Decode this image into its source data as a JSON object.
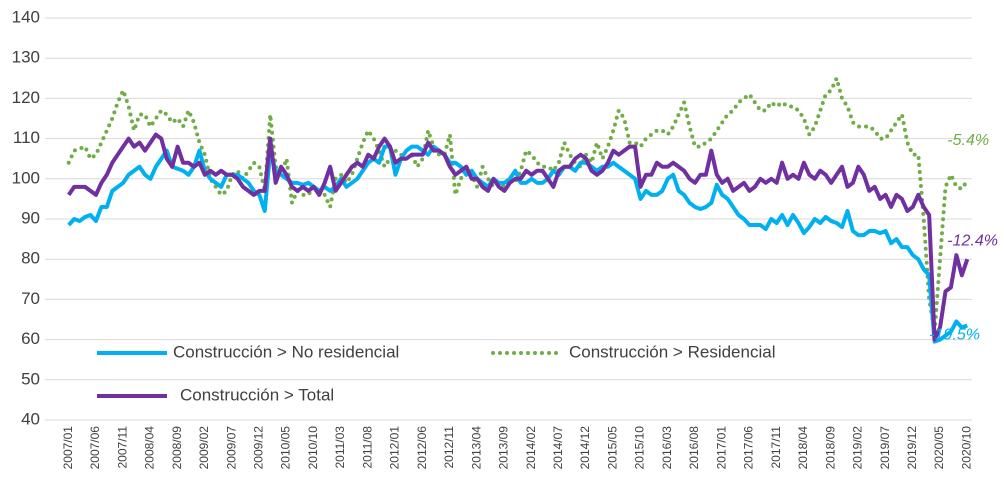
{
  "chart_data": {
    "type": "line",
    "categories": [
      "2007/01",
      null,
      null,
      null,
      null,
      "2007/06",
      null,
      null,
      null,
      null,
      "2007/11",
      null,
      null,
      null,
      null,
      "2008/04",
      null,
      null,
      null,
      null,
      "2008/09",
      null,
      null,
      null,
      null,
      "2009/02",
      null,
      null,
      null,
      null,
      "2009/07",
      null,
      null,
      null,
      null,
      "2009/12",
      null,
      null,
      null,
      null,
      "2010/05",
      null,
      null,
      null,
      null,
      "2010/10",
      null,
      null,
      null,
      null,
      "2011/03",
      null,
      null,
      null,
      null,
      "2011/08",
      null,
      null,
      null,
      null,
      "2012/01",
      null,
      null,
      null,
      null,
      "2012/06",
      null,
      null,
      null,
      null,
      "2012/11",
      null,
      null,
      null,
      null,
      "2013/04",
      null,
      null,
      null,
      null,
      "2013/09",
      null,
      null,
      null,
      null,
      "2014/02",
      null,
      null,
      null,
      null,
      "2014/07",
      null,
      null,
      null,
      null,
      "2014/12",
      null,
      null,
      null,
      null,
      "2015/05",
      null,
      null,
      null,
      null,
      "2015/10",
      null,
      null,
      null,
      null,
      "2016/03",
      null,
      null,
      null,
      null,
      "2016/08",
      null,
      null,
      null,
      null,
      "2017/01",
      null,
      null,
      null,
      null,
      "2017/06",
      null,
      null,
      null,
      null,
      "2017/11",
      null,
      null,
      null,
      null,
      "2018/04",
      null,
      null,
      null,
      null,
      "2018/09",
      null,
      null,
      null,
      null,
      "2019/02",
      null,
      null,
      null,
      null,
      "2019/07",
      null,
      null,
      null,
      null,
      "2019/12",
      null,
      null,
      null,
      null,
      "2020/05",
      null,
      null,
      null,
      null,
      "2020/10"
    ],
    "series": [
      {
        "name": "Construcción > No residencial",
        "color": "#00b0f0",
        "style": "solid",
        "annotation": "-19.5%",
        "values": [
          88.5,
          90,
          89.5,
          90.5,
          91,
          89.5,
          93,
          93,
          97,
          98,
          99,
          101,
          102,
          103,
          101,
          100,
          103,
          105,
          107,
          103,
          102.5,
          102,
          101,
          103,
          107,
          102,
          100,
          99,
          98,
          101,
          101,
          101,
          100,
          99,
          97,
          96,
          92,
          107,
          102,
          101,
          100,
          99,
          99,
          98.5,
          99,
          98,
          97,
          98,
          97,
          98,
          100,
          98,
          99,
          100,
          102,
          104,
          105,
          104,
          108,
          108,
          101,
          105,
          107,
          108,
          108,
          107,
          106,
          108,
          107,
          106,
          104,
          104,
          103,
          101,
          102,
          100,
          99,
          98,
          100,
          99,
          99,
          100,
          102,
          99,
          99,
          100,
          99,
          99,
          100,
          102,
          101,
          103,
          103,
          102,
          104,
          104,
          103,
          102,
          103,
          103,
          104,
          103,
          102,
          101,
          100,
          95,
          97,
          96,
          96,
          97,
          100,
          101,
          97,
          96,
          94,
          93,
          92.5,
          93,
          94,
          98.5,
          96,
          95,
          93,
          91,
          90,
          88.5,
          88.5,
          88.5,
          87.5,
          90,
          89,
          91,
          88.5,
          91,
          89,
          86.5,
          88,
          90,
          89,
          90.5,
          89.5,
          89,
          88,
          92,
          87,
          86,
          86,
          87,
          87,
          86.5,
          87,
          84,
          85,
          83,
          83,
          81,
          80,
          77.5,
          76,
          59.5,
          60,
          61,
          62,
          64.5,
          63,
          63.5
        ]
      },
      {
        "name": "Construcción > Residencial",
        "color": "#70ad47",
        "style": "dotted",
        "annotation": "-5.4%",
        "values": [
          104,
          107,
          107.5,
          108,
          105,
          106,
          109,
          112,
          115,
          119,
          122,
          118,
          112,
          116,
          116,
          113,
          115,
          117,
          116,
          114,
          115,
          113,
          117,
          114,
          109,
          106,
          100,
          98,
          96,
          97,
          101,
          102,
          100,
          102,
          104,
          103,
          97,
          116,
          103,
          101,
          105,
          94,
          97,
          96,
          96,
          98,
          97,
          96,
          93,
          100,
          101,
          99,
          101,
          105,
          109,
          112,
          110,
          107,
          103,
          105,
          107,
          106,
          105,
          106,
          103,
          105,
          112,
          108,
          106,
          106,
          111,
          96,
          100,
          103,
          101,
          98,
          103,
          100,
          98,
          99,
          98,
          100,
          99,
          102,
          107,
          106,
          104,
          103,
          103,
          102,
          104,
          109,
          106,
          104,
          103,
          106,
          104,
          109,
          105,
          108,
          112,
          117,
          115,
          109,
          109,
          108,
          110,
          111,
          112,
          112,
          111,
          113,
          116,
          119,
          113,
          108,
          108,
          109,
          110,
          112,
          114,
          116,
          117,
          119,
          120,
          121,
          119,
          117,
          117,
          119,
          118,
          119,
          118,
          118,
          117,
          115,
          111,
          113,
          117,
          121,
          122,
          125,
          120,
          118,
          114,
          113,
          113,
          113,
          112,
          110,
          110,
          112,
          114,
          116,
          109,
          106,
          106,
          90,
          70,
          62,
          80,
          98,
          101,
          98,
          97.5,
          99.5
        ]
      },
      {
        "name": "Construcción > Total",
        "color": "#7030a0",
        "style": "solid",
        "annotation": "-12.4%",
        "values": [
          96,
          98,
          98,
          98,
          97,
          96,
          99,
          101,
          104,
          106,
          108,
          110,
          108,
          109,
          107,
          109,
          111,
          110,
          105,
          103,
          108,
          104,
          104,
          103,
          104,
          101,
          102,
          101,
          102,
          101,
          101,
          100,
          98,
          97,
          96,
          97,
          97,
          110,
          99,
          103,
          101,
          98,
          97,
          98,
          97,
          98,
          96,
          99,
          103,
          97,
          99,
          101,
          103,
          104,
          103,
          106,
          105,
          108,
          110,
          108,
          104,
          105,
          105,
          106,
          106,
          106,
          109,
          107,
          107,
          106,
          103,
          101,
          102,
          103,
          100,
          100,
          98,
          97,
          100,
          98,
          97,
          99,
          100,
          100,
          102,
          101,
          102,
          102,
          100,
          98,
          102,
          103,
          103,
          105,
          106,
          105,
          102,
          101,
          102,
          104,
          107,
          106,
          107,
          108,
          108,
          98,
          101,
          101,
          104,
          103,
          103,
          104,
          103,
          102,
          100,
          99,
          101,
          101,
          107,
          101,
          99,
          100,
          97,
          98,
          99,
          97,
          98,
          100,
          99,
          100,
          99,
          104,
          100,
          101,
          100,
          104,
          101,
          100,
          102,
          101,
          99,
          101,
          103,
          98,
          99,
          103,
          101,
          97,
          98,
          95,
          96,
          93,
          96,
          95,
          92,
          93,
          96,
          93,
          91,
          60,
          63,
          72,
          73,
          81,
          76,
          80
        ]
      }
    ],
    "ylim": [
      40,
      140
    ],
    "yticks": [
      40,
      50,
      60,
      70,
      80,
      90,
      100,
      110,
      120,
      130,
      140
    ],
    "grid": true
  }
}
